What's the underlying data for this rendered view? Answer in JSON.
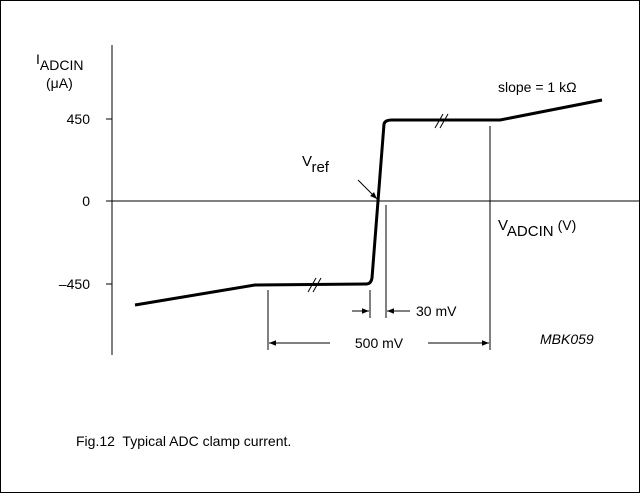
{
  "figure": {
    "y_label": {
      "main": "I",
      "sub": "ADCIN",
      "unit": "(μA)"
    },
    "y_ticks": [
      "450",
      "0",
      "–450"
    ],
    "x_label": {
      "main": "V",
      "sub": "ADCIN",
      "unit": "(V)"
    },
    "vref": {
      "main": "V",
      "sub": "ref"
    },
    "slope": "slope = 1 kΩ",
    "dim_small": "30 mV",
    "dim_large": "500 mV",
    "code": "MBK059",
    "caption": "Fig.12  Typical ADC clamp current."
  }
}
